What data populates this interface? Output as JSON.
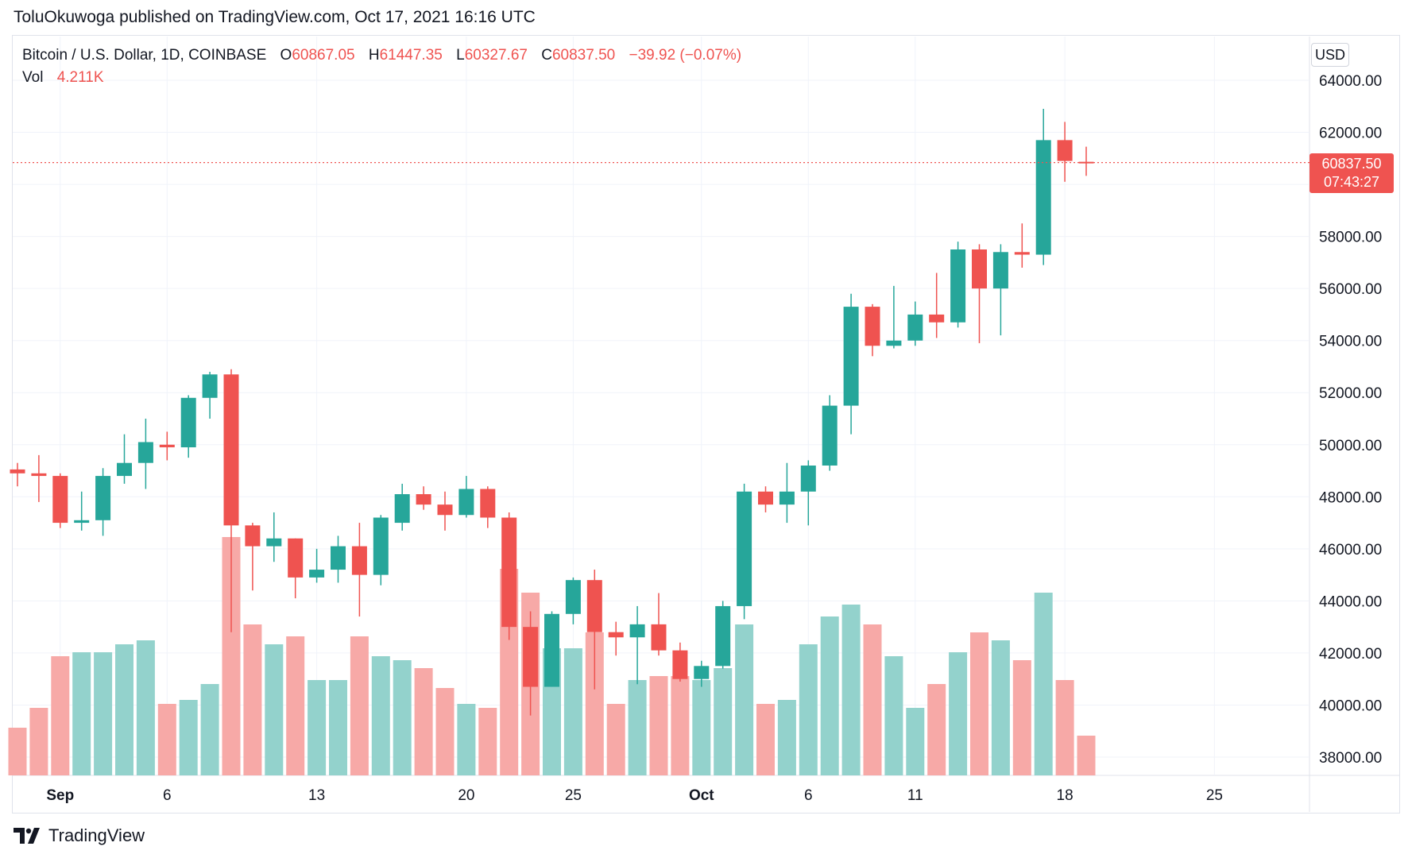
{
  "header": {
    "published": "ToluOkuwoga published on TradingView.com, Oct 17, 2021 16:16 UTC"
  },
  "legend": {
    "symbol": "Bitcoin / U.S. Dollar, 1D, COINBASE",
    "open_label": "O",
    "open": "60867.05",
    "high_label": "H",
    "high": "61447.35",
    "low_label": "L",
    "low": "60327.67",
    "close_label": "C",
    "close": "60837.50",
    "change": "−39.92 (−0.07%)",
    "vol_label": "Vol",
    "vol": "4.211K"
  },
  "currency": "USD",
  "last_price": {
    "price": "60837.50",
    "countdown": "07:43:27"
  },
  "footer": {
    "brand": "TradingView",
    "logo_icon": "tradingview-logo-icon"
  },
  "colors": {
    "up": "#26a69a",
    "down": "#ef5350",
    "up_volume": "#93d2cc",
    "down_volume": "#f7a9a7",
    "grid": "#f0f3fa"
  },
  "chart_data": {
    "type": "candlestick",
    "price_axis": {
      "ylim": [
        37300,
        65500
      ],
      "ticks": [
        "38000.00",
        "40000.00",
        "42000.00",
        "44000.00",
        "46000.00",
        "48000.00",
        "50000.00",
        "52000.00",
        "54000.00",
        "56000.00",
        "58000.00",
        "60000.00",
        "62000.00",
        "64000.00"
      ]
    },
    "time_axis": {
      "ticks": [
        {
          "label": "Sep",
          "day": 3,
          "bold": true
        },
        {
          "label": "6",
          "day": 8,
          "bold": false
        },
        {
          "label": "13",
          "day": 15,
          "bold": false
        },
        {
          "label": "20",
          "day": 22,
          "bold": false
        },
        {
          "label": "25",
          "day": 27,
          "bold": false
        },
        {
          "label": "Oct",
          "day": 33,
          "bold": true
        },
        {
          "label": "6",
          "day": 38,
          "bold": false
        },
        {
          "label": "11",
          "day": 43,
          "bold": false
        },
        {
          "label": "18",
          "day": 50,
          "bold": false
        },
        {
          "label": "25",
          "day": 57,
          "bold": false
        }
      ]
    },
    "candles": [
      {
        "open": 49050,
        "high": 49300,
        "low": 48400,
        "close": 48900
      },
      {
        "open": 48900,
        "high": 49600,
        "low": 47800,
        "close": 48800
      },
      {
        "open": 48800,
        "high": 48900,
        "low": 46800,
        "close": 47000
      },
      {
        "open": 47000,
        "high": 48200,
        "low": 46700,
        "close": 47100
      },
      {
        "open": 47100,
        "high": 49100,
        "low": 46500,
        "close": 48800
      },
      {
        "open": 48800,
        "high": 50400,
        "low": 48500,
        "close": 49300
      },
      {
        "open": 49300,
        "high": 51000,
        "low": 48300,
        "close": 50100
      },
      {
        "open": 50000,
        "high": 50500,
        "low": 49400,
        "close": 49900
      },
      {
        "open": 49900,
        "high": 51900,
        "low": 49500,
        "close": 51800
      },
      {
        "open": 51800,
        "high": 52800,
        "low": 51000,
        "close": 52700
      },
      {
        "open": 52700,
        "high": 52900,
        "low": 42800,
        "close": 46900
      },
      {
        "open": 46900,
        "high": 47000,
        "low": 44400,
        "close": 46100
      },
      {
        "open": 46100,
        "high": 47400,
        "low": 45500,
        "close": 46400
      },
      {
        "open": 46400,
        "high": 46400,
        "low": 44100,
        "close": 44900
      },
      {
        "open": 44900,
        "high": 46000,
        "low": 44700,
        "close": 45200
      },
      {
        "open": 45200,
        "high": 46500,
        "low": 44700,
        "close": 46100
      },
      {
        "open": 46100,
        "high": 47000,
        "low": 43400,
        "close": 45000
      },
      {
        "open": 45000,
        "high": 47300,
        "low": 44600,
        "close": 47200
      },
      {
        "open": 47000,
        "high": 48500,
        "low": 46700,
        "close": 48100
      },
      {
        "open": 48100,
        "high": 48400,
        "low": 47500,
        "close": 47700
      },
      {
        "open": 47700,
        "high": 48200,
        "low": 46700,
        "close": 47300
      },
      {
        "open": 47300,
        "high": 48800,
        "low": 47200,
        "close": 48300
      },
      {
        "open": 48300,
        "high": 48400,
        "low": 46800,
        "close": 47200
      },
      {
        "open": 47200,
        "high": 47400,
        "low": 42500,
        "close": 43000
      },
      {
        "open": 43000,
        "high": 43600,
        "low": 39600,
        "close": 40700
      },
      {
        "open": 40700,
        "high": 43600,
        "low": 40700,
        "close": 43500
      },
      {
        "open": 43500,
        "high": 44900,
        "low": 43100,
        "close": 44800
      },
      {
        "open": 44800,
        "high": 45200,
        "low": 40600,
        "close": 42800
      },
      {
        "open": 42800,
        "high": 43200,
        "low": 41900,
        "close": 42600
      },
      {
        "open": 42600,
        "high": 43800,
        "low": 40800,
        "close": 43100
      },
      {
        "open": 43100,
        "high": 44300,
        "low": 41900,
        "close": 42100
      },
      {
        "open": 42100,
        "high": 42400,
        "low": 40900,
        "close": 41000
      },
      {
        "open": 41000,
        "high": 41700,
        "low": 40700,
        "close": 41500
      },
      {
        "open": 41500,
        "high": 44000,
        "low": 41400,
        "close": 43800
      },
      {
        "open": 43800,
        "high": 48500,
        "low": 43300,
        "close": 48200
      },
      {
        "open": 48200,
        "high": 48400,
        "low": 47400,
        "close": 47700
      },
      {
        "open": 47700,
        "high": 49300,
        "low": 47000,
        "close": 48200
      },
      {
        "open": 48200,
        "high": 49400,
        "low": 46900,
        "close": 49200
      },
      {
        "open": 49200,
        "high": 51900,
        "low": 49000,
        "close": 51500
      },
      {
        "open": 51500,
        "high": 55800,
        "low": 50400,
        "close": 55300
      },
      {
        "open": 55300,
        "high": 55400,
        "low": 53400,
        "close": 53800
      },
      {
        "open": 53800,
        "high": 56100,
        "low": 53700,
        "close": 54000
      },
      {
        "open": 54000,
        "high": 55500,
        "low": 53800,
        "close": 55000
      },
      {
        "open": 55000,
        "high": 56600,
        "low": 54100,
        "close": 54700
      },
      {
        "open": 54700,
        "high": 57800,
        "low": 54500,
        "close": 57500
      },
      {
        "open": 57500,
        "high": 57700,
        "low": 53900,
        "close": 56000
      },
      {
        "open": 56000,
        "high": 57700,
        "low": 54200,
        "close": 57400
      },
      {
        "open": 57400,
        "high": 58500,
        "low": 56800,
        "close": 57300
      },
      {
        "open": 57300,
        "high": 62900,
        "low": 56900,
        "close": 61700
      },
      {
        "open": 61700,
        "high": 62400,
        "low": 60100,
        "close": 60900
      },
      {
        "open": 60867.05,
        "high": 61447.35,
        "low": 60327.67,
        "close": 60837.5
      }
    ],
    "volume_scale_max": 48,
    "volumes": [
      12,
      17,
      30,
      31,
      31,
      33,
      34,
      18,
      19,
      23,
      60,
      38,
      33,
      35,
      24,
      24,
      35,
      30,
      29,
      27,
      22,
      18,
      17,
      52,
      46,
      32,
      32,
      36,
      18,
      24,
      25,
      25,
      24,
      27,
      38,
      18,
      19,
      33,
      40,
      43,
      38,
      30,
      17,
      23,
      31,
      36,
      34,
      29,
      46,
      24,
      10
    ],
    "title": "",
    "xlabel": "",
    "ylabel": "",
    "grid": true,
    "last_price_line": 60837.5
  }
}
